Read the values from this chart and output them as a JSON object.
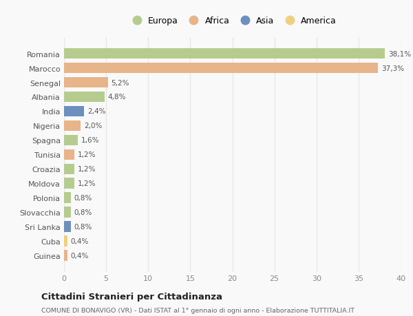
{
  "categories": [
    "Romania",
    "Marocco",
    "Senegal",
    "Albania",
    "India",
    "Nigeria",
    "Spagna",
    "Tunisia",
    "Croazia",
    "Moldova",
    "Polonia",
    "Slovacchia",
    "Sri Lanka",
    "Cuba",
    "Guinea"
  ],
  "values": [
    38.1,
    37.3,
    5.2,
    4.8,
    2.4,
    2.0,
    1.6,
    1.2,
    1.2,
    1.2,
    0.8,
    0.8,
    0.8,
    0.4,
    0.4
  ],
  "labels": [
    "38,1%",
    "37,3%",
    "5,2%",
    "4,8%",
    "2,4%",
    "2,0%",
    "1,6%",
    "1,2%",
    "1,2%",
    "1,2%",
    "0,8%",
    "0,8%",
    "0,8%",
    "0,4%",
    "0,4%"
  ],
  "continents": [
    "Europa",
    "Africa",
    "Africa",
    "Europa",
    "Asia",
    "Africa",
    "Europa",
    "Africa",
    "Europa",
    "Europa",
    "Europa",
    "Europa",
    "Asia",
    "America",
    "Africa"
  ],
  "continent_colors": {
    "Europa": "#b5cc8e",
    "Africa": "#e8b48a",
    "Asia": "#6d8fbf",
    "America": "#f0d080"
  },
  "legend_order": [
    "Europa",
    "Africa",
    "Asia",
    "America"
  ],
  "title": "Cittadini Stranieri per Cittadinanza",
  "subtitle": "COMUNE DI BONAVIGO (VR) - Dati ISTAT al 1° gennaio di ogni anno - Elaborazione TUTTITALIA.IT",
  "xlim": [
    0,
    40
  ],
  "xticks": [
    0,
    5,
    10,
    15,
    20,
    25,
    30,
    35,
    40
  ],
  "background_color": "#f9f9f9",
  "grid_color": "#e8e8e8",
  "bar_height": 0.75
}
